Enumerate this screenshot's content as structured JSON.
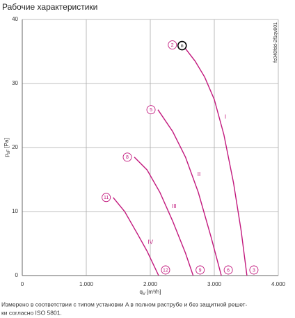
{
  "chart_data": {
    "type": "line",
    "title": "Рабочие характеристики",
    "x_label": "q",
    "x_label_sub": "V",
    "x_label_unit": "[m³/h]",
    "y_label": "p",
    "y_label_sub": "sF",
    "y_label_unit": "[Pa]",
    "side_note": "fc040fdd-2f1qv801",
    "xlim": [
      0,
      4000
    ],
    "xticks": [
      0,
      {
        "value": 1000,
        "label": "1.000"
      },
      {
        "value": 2000,
        "label": "2.000"
      },
      {
        "value": 3000,
        "label": "3.000"
      },
      {
        "value": 4000,
        "label": "4.000"
      }
    ],
    "ylim": [
      0,
      40
    ],
    "yticks": [
      0,
      10,
      20,
      30,
      40
    ],
    "grid": true,
    "series": [
      {
        "name": "I",
        "color": "#c2187d",
        "start_label": "2",
        "end_label": "3",
        "marker_label": "n",
        "x": [
          2530,
          2700,
          2850,
          3000,
          3150,
          3300,
          3420,
          3510
        ],
        "values": [
          35.7,
          33.5,
          31,
          27.5,
          22,
          14.5,
          7,
          0
        ]
      },
      {
        "name": "II",
        "color": "#c2187d",
        "start_label": "5",
        "end_label": "6",
        "x": [
          2120,
          2350,
          2550,
          2750,
          2950,
          3110
        ],
        "values": [
          25.9,
          22.5,
          18.5,
          13,
          6,
          0
        ]
      },
      {
        "name": "III",
        "color": "#c2187d",
        "start_label": "8",
        "end_label": "9",
        "x": [
          1750,
          1950,
          2150,
          2350,
          2550,
          2670
        ],
        "values": [
          18.5,
          16.5,
          13,
          8.5,
          3.5,
          0
        ]
      },
      {
        "name": "IV",
        "color": "#c2187d",
        "start_label": "11",
        "end_label": "12",
        "x": [
          1420,
          1600,
          1800,
          1950,
          2130
        ],
        "values": [
          12.2,
          10,
          6.5,
          3.8,
          0
        ]
      }
    ],
    "footnote": [
      "Измерено в соответствии с типом установки A в полном раструбе и без защитной решет-",
      "ки согласно ISO 5801."
    ]
  }
}
